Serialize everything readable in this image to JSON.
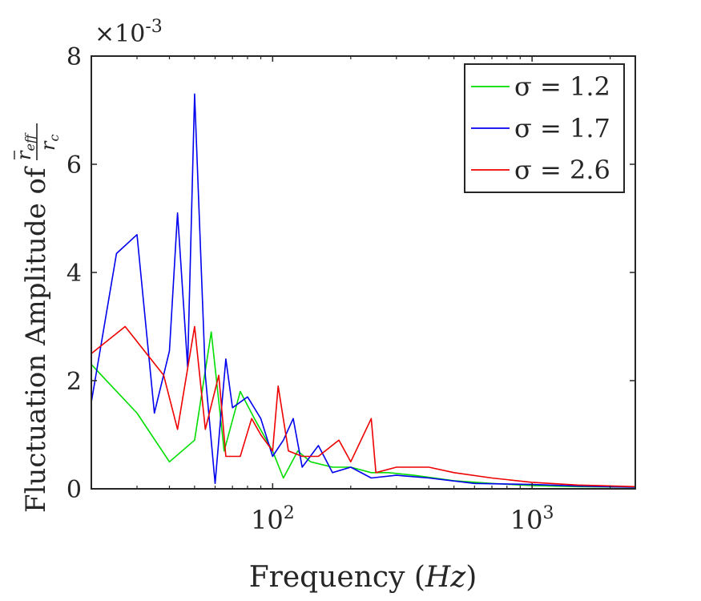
{
  "chart_data": {
    "type": "line",
    "title": "",
    "xlabel": "Frequency (Hz)",
    "ylabel": "Fluctuation Amplitude of r̄_eff / r_c",
    "ylabel_main": "Fluctuation Amplitude of",
    "ylabel_frac_num": "r",
    "ylabel_frac_sub": "eff",
    "ylabel_frac_den": "r",
    "ylabel_frac_den_sub": "c",
    "xscale": "log",
    "xlim": [
      20,
      2500
    ],
    "ylim": [
      0,
      0.008
    ],
    "y_multiplier": "×10",
    "y_multiplier_exp": "-3",
    "yticks": [
      0,
      2,
      4,
      6,
      8
    ],
    "ytick_labels": [
      "0",
      "2",
      "4",
      "6",
      "8"
    ],
    "xticks": [
      100,
      1000
    ],
    "xtick_base": "10",
    "xtick_exps": [
      "2",
      "3"
    ],
    "legend_position": "top-right",
    "series": [
      {
        "name": "σ = 1.2",
        "legend_label": "σ = 1.2",
        "color": "#00dd00",
        "points": [
          [
            20,
            0.0023
          ],
          [
            30,
            0.0014
          ],
          [
            40,
            0.0005
          ],
          [
            50,
            0.0009
          ],
          [
            58,
            0.0029
          ],
          [
            65,
            0.0007
          ],
          [
            75,
            0.0018
          ],
          [
            85,
            0.0013
          ],
          [
            100,
            0.0007
          ],
          [
            110,
            0.0002
          ],
          [
            125,
            0.0007
          ],
          [
            140,
            0.0005
          ],
          [
            170,
            0.0004
          ],
          [
            200,
            0.0004
          ],
          [
            240,
            0.0003
          ],
          [
            280,
            0.0003
          ],
          [
            350,
            0.00025
          ],
          [
            500,
            0.00015
          ],
          [
            700,
            0.0001
          ],
          [
            1000,
            6e-05
          ],
          [
            1500,
            4e-05
          ],
          [
            2500,
            3e-05
          ]
        ]
      },
      {
        "name": "σ = 1.7",
        "legend_label": "σ = 1.7",
        "color": "#0000ee",
        "points": [
          [
            20,
            0.0016
          ],
          [
            25,
            0.00435
          ],
          [
            30,
            0.0047
          ],
          [
            35,
            0.0014
          ],
          [
            40,
            0.00255
          ],
          [
            43,
            0.0051
          ],
          [
            47,
            0.00225
          ],
          [
            50,
            0.0073
          ],
          [
            55,
            0.0021
          ],
          [
            60,
            0.0001
          ],
          [
            63,
            0.0013
          ],
          [
            66,
            0.0024
          ],
          [
            70,
            0.0015
          ],
          [
            80,
            0.0017
          ],
          [
            90,
            0.0013
          ],
          [
            100,
            0.0006
          ],
          [
            110,
            0.0009
          ],
          [
            120,
            0.0013
          ],
          [
            130,
            0.0004
          ],
          [
            150,
            0.0008
          ],
          [
            170,
            0.0003
          ],
          [
            200,
            0.0004
          ],
          [
            240,
            0.0002
          ],
          [
            300,
            0.00025
          ],
          [
            400,
            0.0002
          ],
          [
            600,
            0.0001
          ],
          [
            1000,
            8e-05
          ],
          [
            1500,
            5e-05
          ],
          [
            2500,
            3e-05
          ]
        ]
      },
      {
        "name": "σ = 2.6",
        "legend_label": "σ = 2.6",
        "color": "#ee0000",
        "points": [
          [
            20,
            0.0025
          ],
          [
            27,
            0.003
          ],
          [
            38,
            0.0021
          ],
          [
            43,
            0.0011
          ],
          [
            50,
            0.003
          ],
          [
            55,
            0.0011
          ],
          [
            62,
            0.0021
          ],
          [
            66,
            0.0006
          ],
          [
            75,
            0.0006
          ],
          [
            83,
            0.0013
          ],
          [
            90,
            0.001
          ],
          [
            100,
            0.0007
          ],
          [
            105,
            0.0019
          ],
          [
            115,
            0.0007
          ],
          [
            130,
            0.0006
          ],
          [
            150,
            0.0006
          ],
          [
            180,
            0.0009
          ],
          [
            200,
            0.0005
          ],
          [
            240,
            0.0013
          ],
          [
            250,
            0.0003
          ],
          [
            300,
            0.0004
          ],
          [
            400,
            0.0004
          ],
          [
            500,
            0.0003
          ],
          [
            700,
            0.0002
          ],
          [
            1000,
            0.00012
          ],
          [
            1500,
            7e-05
          ],
          [
            2500,
            4e-05
          ]
        ]
      }
    ]
  }
}
